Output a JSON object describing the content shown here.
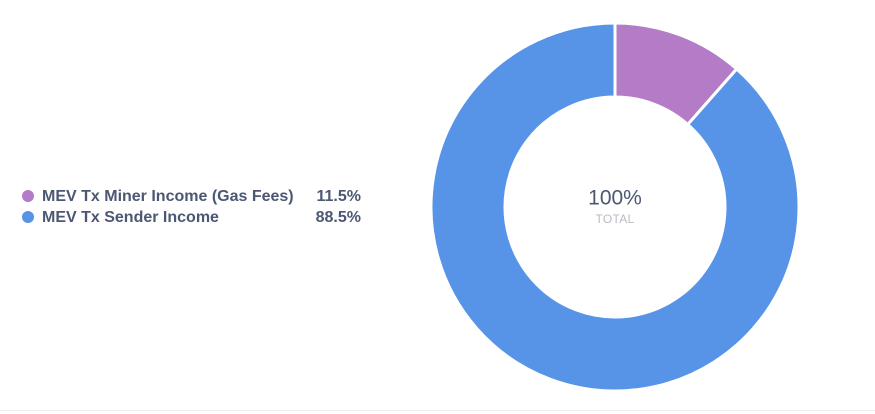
{
  "chart_data": {
    "type": "donut",
    "categories": [
      "MEV Tx Miner Income (Gas Fees)",
      "MEV Tx Sender Income"
    ],
    "values": [
      11.5,
      88.5
    ],
    "value_labels": [
      "11.5%",
      "88.5%"
    ],
    "colors": [
      "#b47cc7",
      "#5793e6"
    ],
    "total": {
      "value": 100,
      "label": "100%"
    },
    "total_caption": "TOTAL"
  }
}
